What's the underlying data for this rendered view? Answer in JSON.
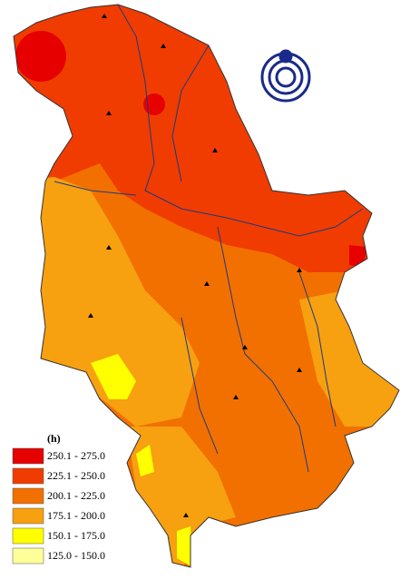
{
  "legend": {
    "title": "(h)",
    "items": [
      {
        "label": "250.1 - 275.0",
        "color": "#e60000"
      },
      {
        "label": "225.1 - 250.0",
        "color": "#f03c00"
      },
      {
        "label": "200.1 - 225.0",
        "color": "#f27000"
      },
      {
        "label": "175.1 - 200.0",
        "color": "#f7a010"
      },
      {
        "label": "150.1 - 175.0",
        "color": "#ffff00"
      },
      {
        "label": "125.0 - 150.0",
        "color": "#ffff99"
      }
    ]
  }
}
